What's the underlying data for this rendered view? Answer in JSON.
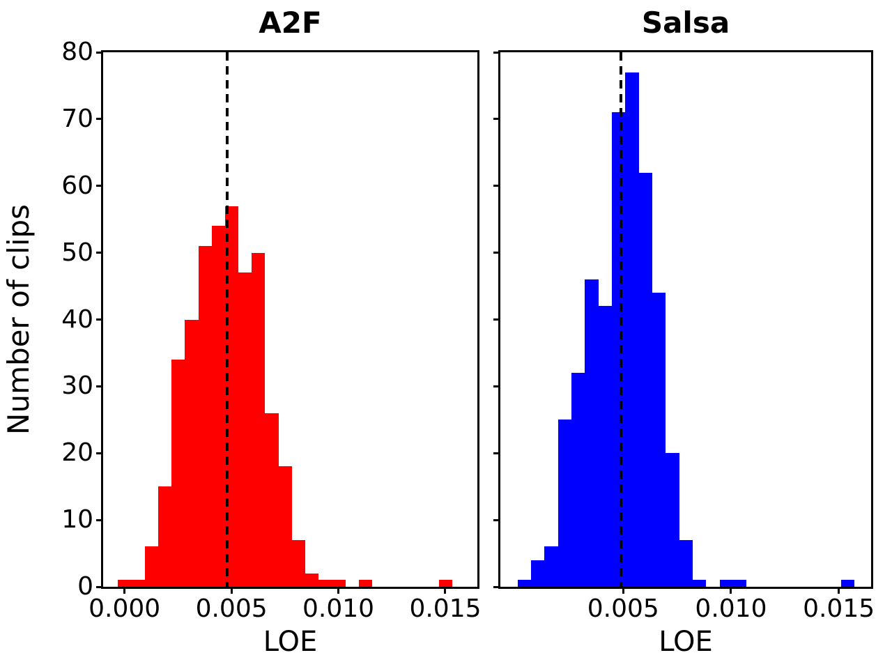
{
  "figure": {
    "ylabel": "Number of clips",
    "background": "#ffffff",
    "axis_color": "#000000"
  },
  "chart_data": [
    {
      "type": "histogram",
      "title": "A2F",
      "xlabel": "LOE",
      "color": "#ff0000",
      "dashed_line_x": 0.0048,
      "dashed_line_color": "#000000",
      "bin_start": -0.0003,
      "bin_width": 0.000625,
      "counts": [
        1,
        1,
        6,
        15,
        34,
        40,
        51,
        54,
        57,
        47,
        50,
        26,
        18,
        7,
        2,
        1,
        1,
        0,
        1,
        0,
        0,
        0,
        0,
        0,
        1
      ],
      "xlim": [
        -0.001,
        0.0165
      ],
      "ylim": [
        0,
        80
      ],
      "xticks": [
        0,
        0.005,
        0.01,
        0.015
      ],
      "xtick_labels": [
        "0.000",
        "0.005",
        "0.010",
        "0.015"
      ],
      "yticks": [
        0,
        10,
        20,
        30,
        40,
        50,
        60,
        70,
        80
      ],
      "ytick_labels": [
        "0",
        "10",
        "20",
        "30",
        "40",
        "50",
        "60",
        "70",
        "80"
      ],
      "show_ytick_labels": true,
      "legend": "none",
      "grid": false
    },
    {
      "type": "histogram",
      "title": "Salsa",
      "xlabel": "LOE",
      "color": "#0000ff",
      "dashed_line_x": 0.0049,
      "dashed_line_color": "#000000",
      "bin_start": 0.0001,
      "bin_width": 0.000625,
      "counts": [
        1,
        4,
        6,
        25,
        32,
        46,
        42,
        71,
        77,
        62,
        44,
        20,
        7,
        1,
        0,
        1,
        1,
        0,
        0,
        0,
        0,
        0,
        0,
        0,
        1
      ],
      "xlim": [
        -0.0007,
        0.0165
      ],
      "ylim": [
        0,
        80
      ],
      "xticks": [
        0.005,
        0.01,
        0.015
      ],
      "xtick_labels": [
        "0.005",
        "0.010",
        "0.015"
      ],
      "yticks": [
        0,
        10,
        20,
        30,
        40,
        50,
        60,
        70,
        80
      ],
      "ytick_labels": [
        "0",
        "10",
        "20",
        "30",
        "40",
        "50",
        "60",
        "70",
        "80"
      ],
      "show_ytick_labels": false,
      "legend": "none",
      "grid": false
    }
  ]
}
